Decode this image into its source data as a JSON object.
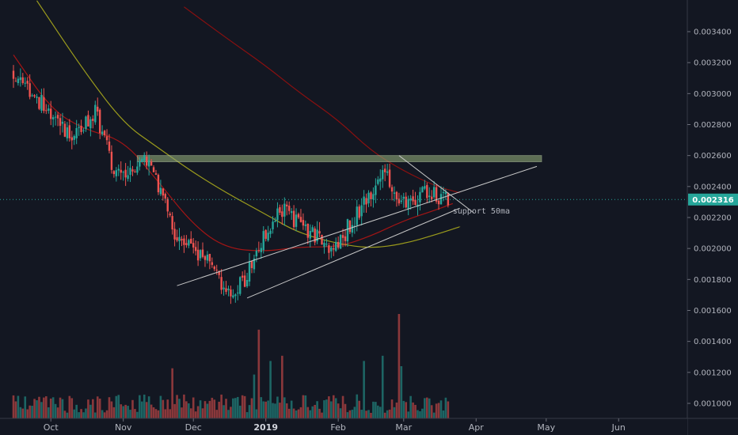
{
  "chart_data": {
    "type": "candlestick",
    "title": "",
    "xlabel": "",
    "ylabel": "",
    "ylim": [
      0.00095,
      0.00356
    ],
    "grid": false,
    "x_tick_labels": [
      "Oct",
      "Nov",
      "Dec",
      "2019",
      "Feb",
      "Mar",
      "Apr",
      "May",
      "Jun"
    ],
    "y_tick_labels": [
      "0.003400",
      "0.003200",
      "0.003000",
      "0.002800",
      "0.002600",
      "0.002400",
      "0.002200",
      "0.002000",
      "0.001800",
      "0.001600",
      "0.001400",
      "0.001200",
      "0.001000"
    ],
    "y_tick_values": [
      0.0034,
      0.0032,
      0.003,
      0.0028,
      0.0026,
      0.0024,
      0.0022,
      0.002,
      0.0018,
      0.0016,
      0.0014,
      0.0012,
      0.001
    ],
    "last_price": {
      "label": "0.002316",
      "value": 0.002316,
      "color": "#26a69a"
    },
    "colors": {
      "up": "#26a69a",
      "down": "#ef5350",
      "ma_short": "#a31515",
      "ma_long": "#9c9c1c",
      "ma_far": "#8a1010",
      "resistance_zone": "#8fa876",
      "trendline": "#c8c8c8"
    },
    "annotations": [
      {
        "text": "support 50ma"
      }
    ],
    "series": [
      {
        "kind": "price_close",
        "segments": [
          {
            "d0": "2018-09-15",
            "d1": "2018-10-10",
            "v0": 0.00315,
            "v1": 0.0027
          },
          {
            "d0": "2018-10-10",
            "d1": "2018-10-20",
            "v0": 0.0027,
            "v1": 0.0029
          },
          {
            "d0": "2018-10-20",
            "d1": "2018-10-28",
            "v0": 0.0029,
            "v1": 0.0025
          },
          {
            "d0": "2018-10-28",
            "d1": "2018-11-05",
            "v0": 0.0025,
            "v1": 0.00246
          },
          {
            "d0": "2018-11-05",
            "d1": "2018-11-10",
            "v0": 0.00246,
            "v1": 0.00262
          },
          {
            "d0": "2018-11-10",
            "d1": "2018-11-18",
            "v0": 0.00262,
            "v1": 0.00235
          },
          {
            "d0": "2018-11-18",
            "d1": "2018-11-24",
            "v0": 0.00235,
            "v1": 0.00205
          },
          {
            "d0": "2018-11-24",
            "d1": "2018-12-05",
            "v0": 0.00205,
            "v1": 0.00195
          },
          {
            "d0": "2018-12-05",
            "d1": "2018-12-15",
            "v0": 0.00195,
            "v1": 0.0017
          },
          {
            "d0": "2018-12-15",
            "d1": "2018-12-24",
            "v0": 0.0017,
            "v1": 0.00182
          },
          {
            "d0": "2018-12-24",
            "d1": "2018-12-31",
            "v0": 0.00182,
            "v1": 0.0021
          },
          {
            "d0": "2018-12-31",
            "d1": "2019-01-08",
            "v0": 0.0021,
            "v1": 0.00225
          },
          {
            "d0": "2019-01-08",
            "d1": "2019-01-18",
            "v0": 0.00225,
            "v1": 0.00212
          },
          {
            "d0": "2019-01-18",
            "d1": "2019-01-30",
            "v0": 0.00212,
            "v1": 0.002
          },
          {
            "d0": "2019-01-30",
            "d1": "2019-02-12",
            "v0": 0.002,
            "v1": 0.00228
          },
          {
            "d0": "2019-02-12",
            "d1": "2019-02-21",
            "v0": 0.00228,
            "v1": 0.0025
          },
          {
            "d0": "2019-02-21",
            "d1": "2019-02-27",
            "v0": 0.0025,
            "v1": 0.00226
          },
          {
            "d0": "2019-02-27",
            "d1": "2019-03-10",
            "v0": 0.00226,
            "v1": 0.00235
          },
          {
            "d0": "2019-03-10",
            "d1": "2019-03-20",
            "v0": 0.00235,
            "v1": 0.00232
          }
        ]
      },
      {
        "kind": "ma",
        "name": "",
        "color": "#a31515",
        "points": [
          [
            "2018-09-15",
            0.00325
          ],
          [
            "2018-10-01",
            0.0029
          ],
          [
            "2018-10-15",
            0.00277
          ],
          [
            "2018-11-01",
            0.0027
          ],
          [
            "2018-11-15",
            0.00245
          ],
          [
            "2018-12-01",
            0.00215
          ],
          [
            "2018-12-15",
            0.002
          ],
          [
            "2019-01-01",
            0.00198
          ],
          [
            "2019-01-15",
            0.00201
          ],
          [
            "2019-02-01",
            0.00201
          ],
          [
            "2019-02-15",
            0.00208
          ],
          [
            "2019-03-01",
            0.00218
          ],
          [
            "2019-03-15",
            0.00225
          ],
          [
            "2019-03-22",
            0.00229
          ]
        ]
      },
      {
        "kind": "ma",
        "name": "",
        "color": "#9c9c1c",
        "points": [
          [
            "2018-09-25",
            0.0036
          ],
          [
            "2018-10-15",
            0.00315
          ],
          [
            "2018-11-01",
            0.00281
          ],
          [
            "2018-11-15",
            0.00266
          ],
          [
            "2018-12-01",
            0.00249
          ],
          [
            "2018-12-15",
            0.00236
          ],
          [
            "2019-01-01",
            0.00222
          ],
          [
            "2019-01-15",
            0.0021
          ],
          [
            "2019-02-01",
            0.00203
          ],
          [
            "2019-02-15",
            0.002
          ],
          [
            "2019-03-01",
            0.00203
          ],
          [
            "2019-03-15",
            0.00209
          ],
          [
            "2019-03-25",
            0.00214
          ]
        ]
      },
      {
        "kind": "ma",
        "name": "",
        "color": "#8a1010",
        "points": [
          [
            "2018-11-27",
            0.00356
          ],
          [
            "2018-12-15",
            0.00336
          ],
          [
            "2019-01-01",
            0.00318
          ],
          [
            "2019-01-15",
            0.00301
          ],
          [
            "2019-02-01",
            0.00283
          ],
          [
            "2019-02-15",
            0.00263
          ],
          [
            "2019-03-01",
            0.0025
          ],
          [
            "2019-03-15",
            0.0024
          ],
          [
            "2019-03-25",
            0.00236
          ]
        ]
      }
    ],
    "drawings": [
      {
        "kind": "zone",
        "d0": "2018-11-07",
        "d1": "2019-04-29",
        "top": 0.0026,
        "bottom": 0.00256
      },
      {
        "kind": "trendline",
        "d0": "2018-11-24",
        "v0": 0.00176,
        "d1": "2019-04-27",
        "v1": 0.00253
      },
      {
        "kind": "trendline",
        "d0": "2018-12-24",
        "v0": 0.00168,
        "d1": "2019-03-25",
        "v1": 0.00226
      },
      {
        "kind": "trendline",
        "d0": "2019-02-27",
        "v0": 0.0026,
        "d1": "2019-03-31",
        "v1": 0.00223
      }
    ],
    "volume": {
      "color_up": "#26a69a",
      "color_down": "#ef5350",
      "spikes": [
        {
          "d": "2018-12-27",
          "rel": 0.42
        },
        {
          "d": "2018-12-29",
          "rel": 0.85
        },
        {
          "d": "2019-01-03",
          "rel": 0.55
        },
        {
          "d": "2019-01-08",
          "rel": 0.6
        },
        {
          "d": "2019-02-12",
          "rel": 0.55
        },
        {
          "d": "2019-02-20",
          "rel": 0.6
        },
        {
          "d": "2019-02-27",
          "rel": 1.0
        },
        {
          "d": "2019-02-28",
          "rel": 0.5
        },
        {
          "d": "2018-11-22",
          "rel": 0.48
        },
        {
          "d": "2018-09-28",
          "rel": 0.2
        }
      ]
    }
  }
}
